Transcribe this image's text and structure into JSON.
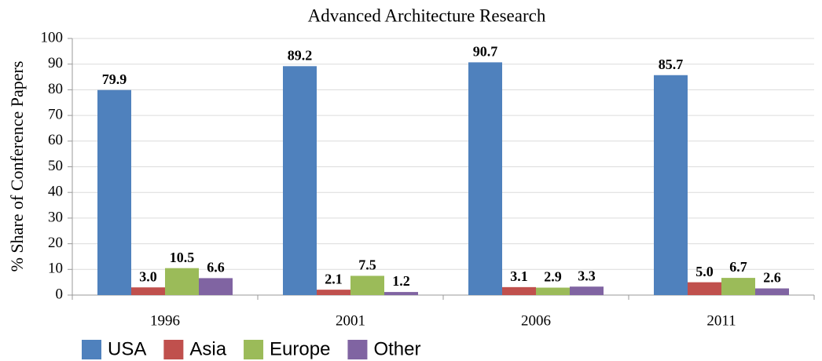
{
  "chart_data": {
    "type": "bar",
    "title": "Advanced Architecture Research",
    "y_label": "% Share of Conference Papers",
    "categories": [
      "1996",
      "2001",
      "2006",
      "2011"
    ],
    "series": [
      {
        "name": "USA",
        "color": "#4f81bd",
        "values": [
          79.9,
          89.2,
          90.7,
          85.7
        ],
        "value_labels": [
          "79.9",
          "89.2",
          "90.7",
          "85.7"
        ]
      },
      {
        "name": "Asia",
        "color": "#c0504d",
        "values": [
          3,
          2.1,
          3.1,
          5
        ],
        "value_labels": [
          "3.0",
          "2.1",
          "3.1",
          "5.0"
        ]
      },
      {
        "name": "Europe",
        "color": "#9bbb59",
        "values": [
          10.5,
          7.5,
          2.9,
          6.7
        ],
        "value_labels": [
          "10.5",
          "7.5",
          "2.9",
          "6.7"
        ]
      },
      {
        "name": "Other",
        "color": "#8064a2",
        "values": [
          6.6,
          1.2,
          3.3,
          2.6
        ],
        "value_labels": [
          "6.6",
          "1.2",
          "3.3",
          "2.6"
        ]
      }
    ],
    "ylim": [
      0,
      100
    ],
    "yticks": [
      0,
      10,
      20,
      30,
      40,
      50,
      60,
      70,
      80,
      90,
      100
    ],
    "grid": true,
    "legend": "bottom"
  }
}
